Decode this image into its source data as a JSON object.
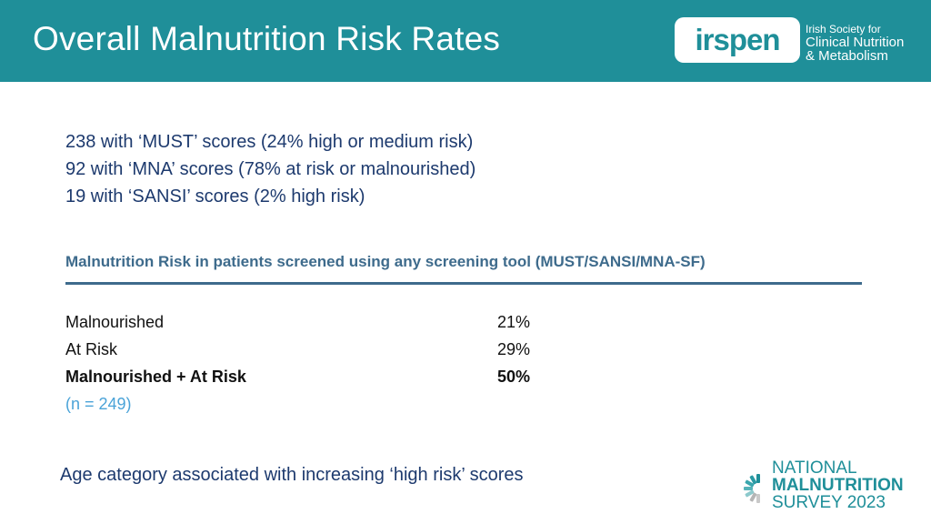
{
  "slide": {
    "title": "Overall Malnutrition Risk Rates"
  },
  "logo": {
    "wordmark": "irspen",
    "line1": "Irish Society for",
    "line2": "Clinical Nutrition",
    "line3": "& Metabolism",
    "color": "#1f8f99"
  },
  "summary": [
    "238 with ‘MUST’ scores (24% high or medium risk)",
    "92 with ‘MNA’ scores (78% at risk or malnourished)",
    "19 with ‘SANSI’ scores (2% high risk)"
  ],
  "section": {
    "title": "Malnutrition Risk in patients screened using any screening tool (MUST/SANSI/MNA-SF)"
  },
  "risk_table": {
    "rows": [
      {
        "label": "Malnourished",
        "value": "21%"
      },
      {
        "label": "At Risk",
        "value": "29%"
      },
      {
        "label": "Malnourished + At Risk",
        "value": "50%"
      }
    ],
    "note": "(n = 249)"
  },
  "footer": {
    "note": "Age category associated with increasing ‘high risk’ scores"
  },
  "survey_logo": {
    "line1": "NATIONAL",
    "line2": "MALNUTRITION",
    "line3": "SURVEY 2023"
  }
}
